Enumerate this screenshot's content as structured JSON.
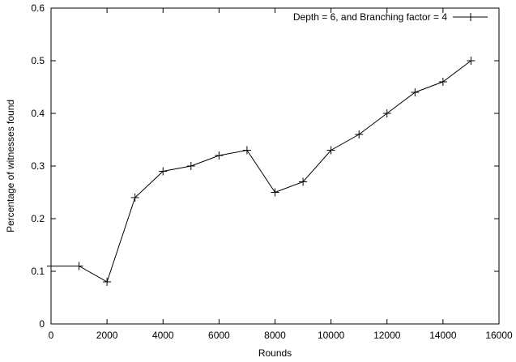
{
  "chart_data": {
    "type": "line",
    "title": "",
    "xlabel": "Rounds",
    "ylabel": "Percentage of witnesses found",
    "xlim": [
      0,
      16000
    ],
    "ylim": [
      0,
      0.6
    ],
    "xticks": [
      0,
      2000,
      4000,
      6000,
      8000,
      10000,
      12000,
      14000,
      16000
    ],
    "yticks": [
      0,
      0.1,
      0.2,
      0.3,
      0.4,
      0.5,
      0.6
    ],
    "grid": false,
    "legend_position": "top-right",
    "series": [
      {
        "name": "Depth = 6, and Branching factor = 4",
        "marker": "plus",
        "color": "#000000",
        "x": [
          0,
          1000,
          2000,
          3000,
          4000,
          5000,
          6000,
          7000,
          8000,
          9000,
          10000,
          11000,
          12000,
          13000,
          14000,
          15000
        ],
        "y": [
          0.11,
          0.11,
          0.08,
          0.24,
          0.29,
          0.3,
          0.32,
          0.33,
          0.25,
          0.27,
          0.33,
          0.36,
          0.4,
          0.44,
          0.46,
          0.5
        ]
      }
    ]
  }
}
